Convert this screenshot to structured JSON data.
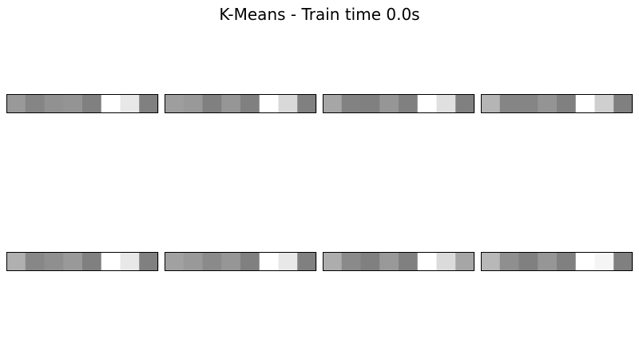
{
  "title": "K-Means - Train time 0.0s",
  "chart_data": {
    "type": "heatmap",
    "title": "K-Means - Train time 0.0s",
    "colormap": "gray",
    "grid": false,
    "axes_ticks": false,
    "layout": {
      "rows": 2,
      "cols": 4
    },
    "panels": [
      {
        "cells": [
          0.6,
          0.52,
          0.57,
          0.58,
          0.5,
          1.0,
          0.91,
          0.5
        ]
      },
      {
        "cells": [
          0.62,
          0.6,
          0.5,
          0.59,
          0.5,
          1.0,
          0.85,
          0.5
        ]
      },
      {
        "cells": [
          0.65,
          0.51,
          0.5,
          0.59,
          0.5,
          1.0,
          0.88,
          0.5
        ]
      },
      {
        "cells": [
          0.71,
          0.52,
          0.52,
          0.58,
          0.5,
          1.0,
          0.81,
          0.5
        ]
      },
      {
        "cells": [
          0.69,
          0.53,
          0.56,
          0.6,
          0.5,
          1.0,
          0.91,
          0.5
        ]
      },
      {
        "cells": [
          0.63,
          0.6,
          0.54,
          0.59,
          0.5,
          1.0,
          0.91,
          0.5
        ]
      },
      {
        "cells": [
          0.68,
          0.54,
          0.5,
          0.6,
          0.5,
          1.0,
          0.86,
          0.65
        ]
      },
      {
        "cells": [
          0.72,
          0.56,
          0.5,
          0.59,
          0.5,
          1.0,
          0.96,
          0.5
        ]
      }
    ]
  }
}
